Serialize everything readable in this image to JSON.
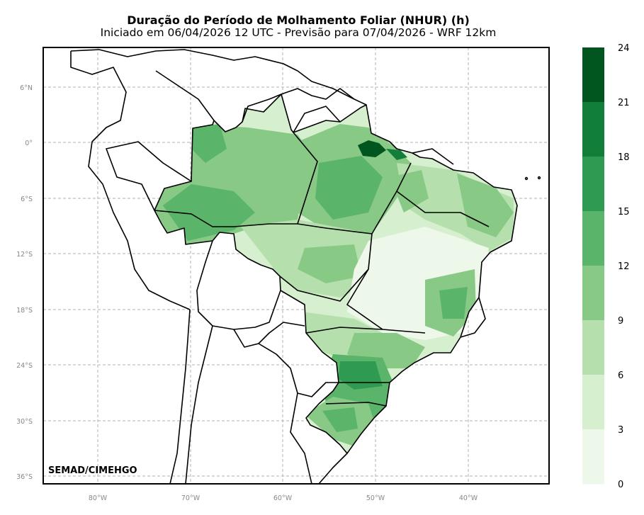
{
  "title": "Duração do Período de Molhamento Foliar (NHUR) (h)",
  "subtitle": "Iniciado em 06/04/2026 12 UTC - Previsão para 07/04/2026 - WRF 12km",
  "credit": "SEMAD/CIMEHGO",
  "lat_ticks": [
    "6°N",
    "0°",
    "6°S",
    "12°S",
    "18°S",
    "24°S",
    "30°S",
    "36°S"
  ],
  "lon_ticks": [
    "80°W",
    "70°W",
    "60°W",
    "50°W",
    "40°W"
  ],
  "colorbar": {
    "labels": [
      "24",
      "21",
      "18",
      "15",
      "12",
      "9",
      "6",
      "3",
      "0"
    ],
    "colors": [
      "#00561e",
      "#117e3a",
      "#2f9a51",
      "#5ab46a",
      "#88c986",
      "#b5e0ad",
      "#d6efcf",
      "#eef8ea"
    ]
  },
  "map": {
    "region": "Brasil",
    "lon_range": [
      -86,
      -31
    ],
    "lat_range": [
      -37,
      10
    ]
  }
}
